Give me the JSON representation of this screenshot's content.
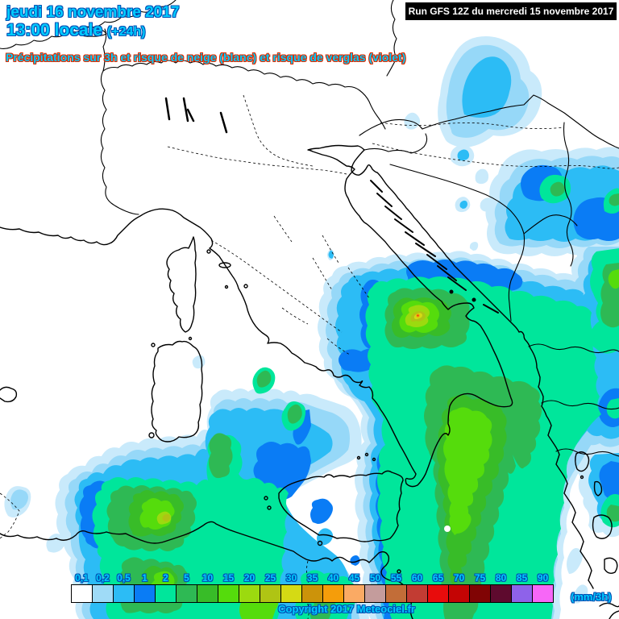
{
  "header": {
    "date_line": "jeudi 16 novembre 2017",
    "time_line": "13:00 locale",
    "offset_label": "(+24h)",
    "description": "Précipitations sur 3h et risque de neige (blanc) et risque de verglas (violet)",
    "run_info": "Run GFS 12Z du mercredi 15 novembre 2017"
  },
  "legend": {
    "unit_label": "(mm/3h)",
    "values": [
      "0,1",
      "0,2",
      "0,5",
      "1",
      "2",
      "5",
      "10",
      "15",
      "20",
      "25",
      "30",
      "35",
      "40",
      "45",
      "50",
      "55",
      "60",
      "65",
      "70",
      "75",
      "80",
      "85",
      "90"
    ],
    "colors": [
      "#FFFFFF",
      "#9FDBF7",
      "#2CBCF5",
      "#0A7CF5",
      "#00E69B",
      "#2EB954",
      "#38BC28",
      "#55DC0C",
      "#9CDA0F",
      "#AFC414",
      "#D5DA14",
      "#CC930A",
      "#F59D0A",
      "#FAAA64",
      "#C49C9C",
      "#C26D38",
      "#C23C33",
      "#E80C0C",
      "#C40404",
      "#800404",
      "#5E0A2E",
      "#8E62EA",
      "#F767F7"
    ]
  },
  "footer": {
    "copyright": "Copyright 2017 Meteociel.fr"
  },
  "theme": {
    "text_fill": "#00CCFF",
    "text_outline_blue": "#0050B4",
    "text_outline_red": "#DD2C00",
    "run_box_bg": "#000000",
    "run_box_text": "#FFFFFF"
  }
}
